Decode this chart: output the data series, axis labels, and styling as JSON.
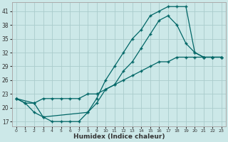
{
  "xlabel": "Humidex (Indice chaleur)",
  "bg_color": "#cce8e8",
  "grid_color": "#aacccc",
  "line_color": "#006666",
  "xlim": [
    -0.5,
    23.5
  ],
  "ylim": [
    16,
    43
  ],
  "yticks": [
    17,
    20,
    23,
    26,
    29,
    32,
    35,
    38,
    41
  ],
  "xticks": [
    0,
    1,
    2,
    3,
    4,
    5,
    6,
    7,
    8,
    9,
    10,
    11,
    12,
    13,
    14,
    15,
    16,
    17,
    18,
    19,
    20,
    21,
    22,
    23
  ],
  "line1_x": [
    0,
    1,
    2,
    3,
    4,
    5,
    6,
    7,
    8,
    9,
    10,
    11,
    12,
    13,
    14,
    15,
    16,
    17,
    18,
    19,
    20,
    21,
    22,
    23
  ],
  "line1_y": [
    22,
    21,
    19,
    18,
    17,
    17,
    17,
    17,
    19,
    22,
    26,
    29,
    32,
    35,
    37,
    40,
    41,
    42,
    42,
    42,
    32,
    31,
    31,
    31
  ],
  "line2_x": [
    0,
    2,
    3,
    8,
    9,
    10,
    11,
    12,
    13,
    14,
    15,
    16,
    17,
    18,
    19,
    20,
    21,
    22,
    23
  ],
  "line2_y": [
    22,
    21,
    18,
    19,
    21,
    24,
    25,
    28,
    30,
    33,
    36,
    39,
    40,
    38,
    34,
    32,
    31,
    31,
    31
  ],
  "line3_x": [
    0,
    1,
    2,
    3,
    4,
    5,
    6,
    7,
    8,
    9,
    10,
    11,
    12,
    13,
    14,
    15,
    16,
    17,
    18,
    19,
    20,
    21,
    22,
    23
  ],
  "line3_y": [
    22,
    21,
    21,
    22,
    22,
    22,
    22,
    22,
    23,
    23,
    24,
    25,
    26,
    27,
    28,
    29,
    30,
    30,
    31,
    31,
    31,
    31,
    31,
    31
  ]
}
